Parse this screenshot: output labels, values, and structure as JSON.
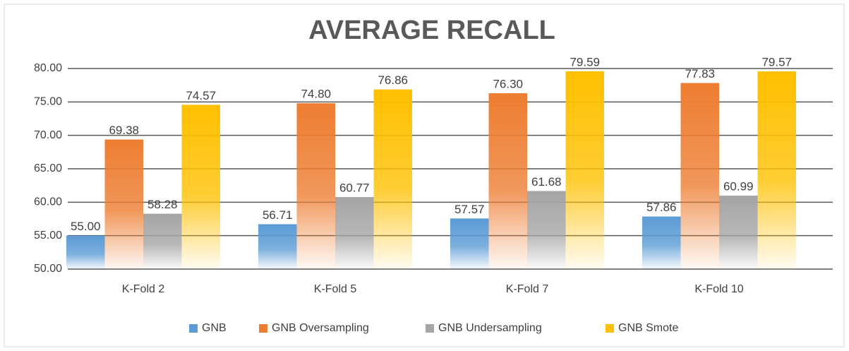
{
  "chart_data": {
    "type": "bar",
    "title": "AVERAGE RECALL",
    "categories": [
      "K-Fold 2",
      "K-Fold 5",
      "K-Fold 7",
      "K-Fold 10"
    ],
    "series": [
      {
        "name": "GNB",
        "color": "#5b9bd5",
        "values": [
          55.0,
          56.71,
          57.57,
          57.86
        ],
        "value_labels": [
          "55.00",
          "56.71",
          "57.57",
          "57.86"
        ]
      },
      {
        "name": "GNB Oversampling",
        "color": "#ed7d31",
        "values": [
          69.38,
          74.8,
          76.3,
          77.83
        ],
        "value_labels": [
          "69.38",
          "74.80",
          "76.30",
          "77.83"
        ]
      },
      {
        "name": "GNB Undersampling",
        "color": "#a5a5a5",
        "values": [
          58.28,
          60.77,
          61.68,
          60.99
        ],
        "value_labels": [
          "58.28",
          "60.77",
          "61.68",
          "60.99"
        ]
      },
      {
        "name": "GNB Smote",
        "color": "#ffc000",
        "values": [
          74.57,
          76.86,
          79.59,
          79.57
        ],
        "value_labels": [
          "74.57",
          "76.86",
          "79.59",
          "79.57"
        ]
      }
    ],
    "ylim": [
      50,
      80
    ],
    "yticks": [
      {
        "value": 50,
        "label": "50.00"
      },
      {
        "value": 55,
        "label": "55.00"
      },
      {
        "value": 60,
        "label": "60.00"
      },
      {
        "value": 65,
        "label": "65.00"
      },
      {
        "value": 70,
        "label": "70.00"
      },
      {
        "value": 75,
        "label": "75.00"
      },
      {
        "value": 80,
        "label": "80.00"
      }
    ],
    "grid": true,
    "legend": "bottom"
  }
}
